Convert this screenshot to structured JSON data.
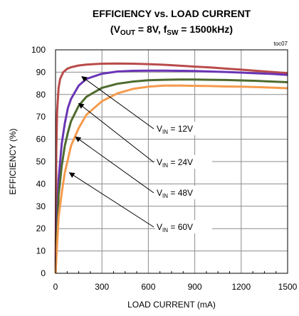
{
  "chart_data": {
    "type": "line",
    "title_line1": "EFFICIENCY vs. LOAD CURRENT",
    "title_line2": {
      "open": "(V",
      "vout_sub": "OUT",
      "vout_rest": " = 8V, f",
      "fsw_sub": "SW",
      "fsw_rest": " = 1500kHz)"
    },
    "figure_id": "toc07",
    "xlabel": "LOAD CURRENT (mA)",
    "ylabel": "EFFICIENCY (%)",
    "xlim": [
      0,
      1500
    ],
    "ylim": [
      0,
      100
    ],
    "xticks": [
      "0",
      "300",
      "600",
      "900",
      "1200",
      "1500"
    ],
    "yticks": [
      "0",
      "10",
      "20",
      "30",
      "40",
      "50",
      "60",
      "70",
      "80",
      "90",
      "100"
    ],
    "grid": true,
    "series": [
      {
        "color": "#b94b4b",
        "x": [
          0,
          5,
          10,
          20,
          30,
          50,
          75,
          100,
          150,
          200,
          300,
          400,
          500,
          600,
          700,
          800,
          900,
          1000,
          1100,
          1200,
          1300,
          1400,
          1500
        ],
        "y": [
          0,
          55,
          72,
          83,
          87,
          90,
          91.5,
          92.2,
          93,
          93.4,
          93.8,
          93.9,
          93.8,
          93.6,
          93.3,
          92.9,
          92.5,
          92.1,
          91.6,
          91.1,
          90.6,
          90.1,
          89.6
        ]
      },
      {
        "color": "#6a35b5",
        "x": [
          0,
          10,
          20,
          40,
          60,
          80,
          100,
          150,
          200,
          300,
          400,
          500,
          600,
          700,
          800,
          900,
          1000,
          1100,
          1200,
          1300,
          1400,
          1500
        ],
        "y": [
          0,
          25,
          42,
          58,
          67,
          74,
          78,
          84,
          87,
          89.3,
          90.3,
          90.6,
          90.7,
          90.7,
          90.6,
          90.5,
          90.3,
          90.1,
          89.8,
          89.5,
          89.2,
          88.8
        ]
      },
      {
        "color": "#4e6b2e",
        "x": [
          0,
          20,
          40,
          60,
          80,
          100,
          150,
          200,
          300,
          400,
          500,
          600,
          700,
          800,
          900,
          1000,
          1100,
          1200,
          1300,
          1400,
          1500
        ],
        "y": [
          0,
          35,
          48,
          57,
          63,
          68,
          75,
          79,
          83,
          84.8,
          85.8,
          86.4,
          86.6,
          86.7,
          86.7,
          86.6,
          86.5,
          86.3,
          86.1,
          85.8,
          85.5
        ]
      },
      {
        "color": "#f59a4c",
        "x": [
          0,
          20,
          40,
          60,
          80,
          100,
          150,
          200,
          300,
          400,
          500,
          600,
          700,
          800,
          900,
          1000,
          1100,
          1200,
          1300,
          1400,
          1500
        ],
        "y": [
          0,
          25,
          36,
          45,
          51,
          57,
          65,
          71,
          77,
          80.5,
          82.5,
          83.5,
          84,
          84,
          83.9,
          83.8,
          83.6,
          83.5,
          83.3,
          83.1,
          82.8
        ]
      }
    ],
    "annotations": [
      {
        "v": "V",
        "sub": "IN",
        "rest": " = 12V",
        "arrow_to": [
          170,
          88
        ]
      },
      {
        "v": "V",
        "sub": "IN",
        "rest": " = 24V",
        "arrow_to": [
          150,
          76
        ]
      },
      {
        "v": "V",
        "sub": "IN",
        "rest": " = 48V",
        "arrow_to": [
          130,
          61
        ]
      },
      {
        "v": "V",
        "sub": "IN",
        "rest": " = 60V",
        "arrow_to": [
          90,
          45
        ]
      }
    ]
  }
}
